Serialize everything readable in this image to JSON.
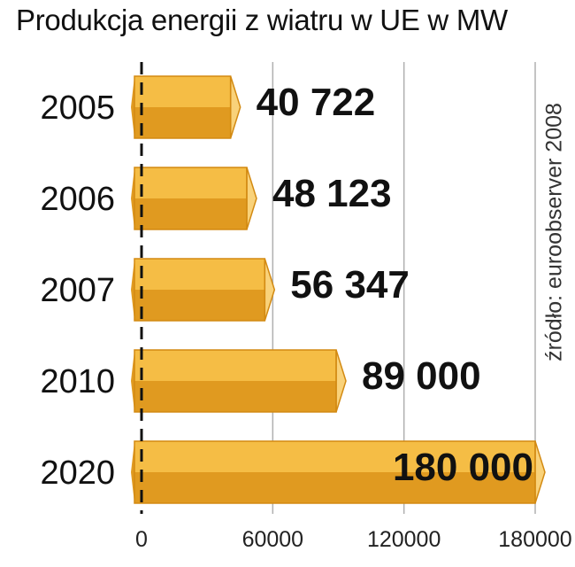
{
  "chart_data": {
    "type": "bar",
    "orientation": "horizontal",
    "title": "Produkcja energii z wiatru w UE w MW",
    "source": "źródło: euroobserver 2008",
    "categories": [
      "2005",
      "2006",
      "2007",
      "2010",
      "2020"
    ],
    "values": [
      40722,
      48123,
      56347,
      89000,
      180000
    ],
    "value_labels": [
      "40 722",
      "48 123",
      "56 347",
      "89 000",
      "180 000"
    ],
    "xlim": [
      0,
      180000
    ],
    "x_ticks": [
      0,
      60000,
      120000,
      180000
    ],
    "x_tick_labels": [
      "0",
      "60000",
      "120000",
      "180000"
    ],
    "grid": true,
    "colors": {
      "bar_top": "#f5bd45",
      "bar_bottom": "#e09a20",
      "bar_end": "#f9d27a",
      "bar_edge": "#d38a12",
      "grid": "#b0b0b0",
      "axis": "#111111"
    }
  }
}
